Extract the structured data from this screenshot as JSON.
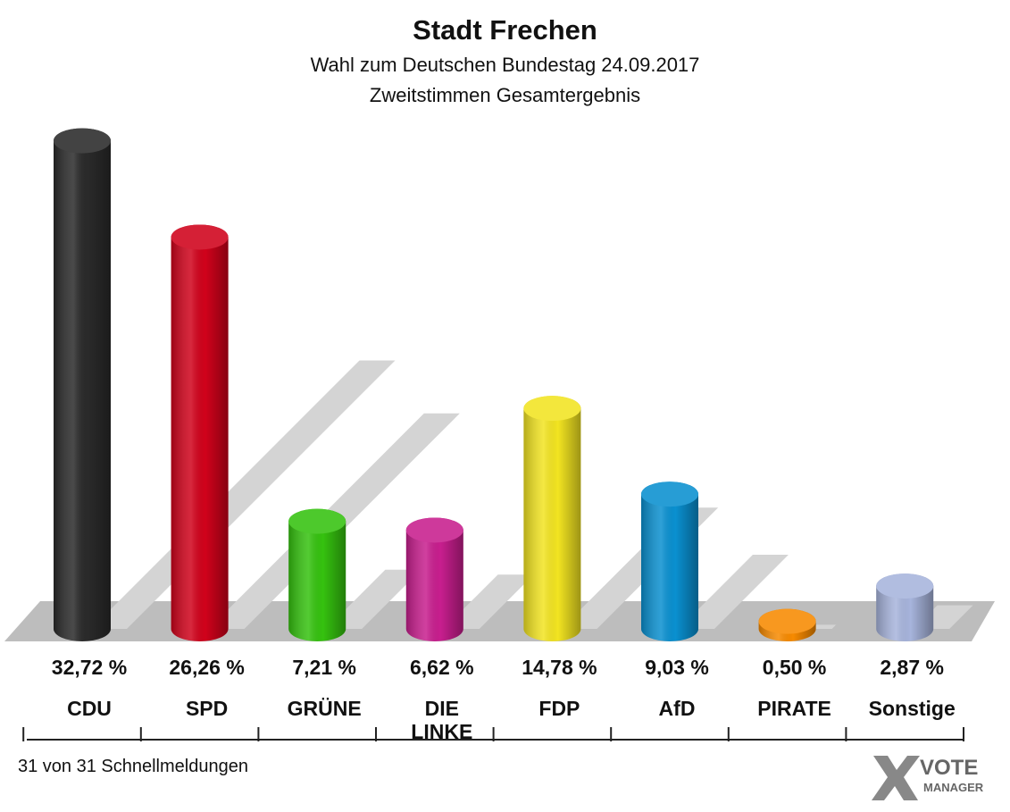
{
  "chart_data": {
    "type": "bar",
    "title": "Stadt Frechen",
    "subtitle": "Wahl zum Deutschen Bundestag 24.09.2017",
    "subtitle2": "Zweitstimmen Gesamtergebnis",
    "categories": [
      "CDU",
      "SPD",
      "GRÜNE",
      "DIE\nLINKE",
      "FDP",
      "AfD",
      "PIRATE",
      "Sonstige"
    ],
    "values": [
      32.72,
      26.26,
      7.21,
      6.62,
      14.78,
      9.03,
      0.5,
      2.87
    ],
    "value_labels": [
      "32,72 %",
      "26,26 %",
      "7,21 %",
      "6,62 %",
      "14,78 %",
      "9,03 %",
      "0,50 %",
      "2,87 %"
    ],
    "colors": [
      "#2a2a2a",
      "#d0021b",
      "#35c20f",
      "#c81e8e",
      "#f2e421",
      "#0a90d0",
      "#f78a00",
      "#a7b4dc"
    ],
    "footer": "31 von 31 Schnellmeldungen",
    "logo": [
      "VOTE",
      "MANAGER"
    ]
  }
}
